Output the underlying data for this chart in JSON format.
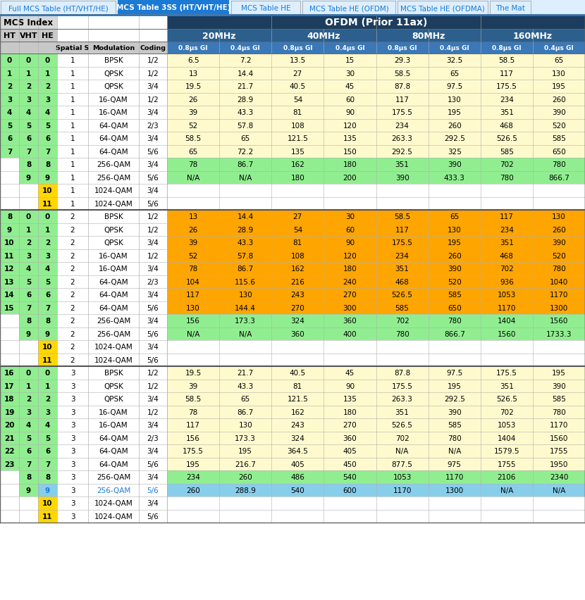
{
  "tab_labels": [
    "Full MCS Table (HT/VHT/HE)",
    "MCS Table 3SS (HT/VHT/HE)",
    "MCS Table HE",
    "MCS Table HE (OFDM)",
    "MCS Table HE (OFDMA)",
    "The Mat"
  ],
  "active_tab": 1,
  "ofdm_header": "OFDM (Prior 11ax)",
  "col_headers_l1": [
    "20MHz",
    "40MHz",
    "80MHz",
    "160MHz"
  ],
  "col_headers_l2": [
    "0.8μs GI",
    "0.4μs GI",
    "0.8μs GI",
    "0.4μs GI",
    "0.8μs GI",
    "0.4μs GI",
    "0.8μs GI",
    "0.4μs GI"
  ],
  "tab_bar_bg": "#ddeeff",
  "tab_active_bg": "#1a7ad4",
  "tab_inactive_text": "#1a7ad4",
  "tab_active_text": "#ffffff",
  "ofdm_header_bg": "#1c3d5e",
  "mcs_index_bg": "#d8d8d8",
  "mhz_header_bg": "#2c5f8c",
  "gi_header_bg": "#3a78b8",
  "col_header_text": "#ffffff",
  "mcs_header_text": "#000000",
  "gi_row_bg": "#c8c8c8",
  "rows": [
    {
      "HT": "0",
      "VHT": "0",
      "HE": "0",
      "Spatial": "1",
      "Modulation": "BPSK",
      "Coding": "1/2",
      "v20_08": "6.5",
      "v20_04": "7.2",
      "v40_08": "13.5",
      "v40_04": "15",
      "v80_08": "29.3",
      "v80_04": "32.5",
      "v160_08": "58.5",
      "v160_04": "65",
      "bg_ht": "#90ee90",
      "bg_vht": "#90ee90",
      "bg_he": "#90ee90",
      "bg_data": "#fffacd",
      "he_text": "#000000",
      "mod_text": "#000000",
      "cod_text": "#000000"
    },
    {
      "HT": "1",
      "VHT": "1",
      "HE": "1",
      "Spatial": "1",
      "Modulation": "QPSK",
      "Coding": "1/2",
      "v20_08": "13",
      "v20_04": "14.4",
      "v40_08": "27",
      "v40_04": "30",
      "v80_08": "58.5",
      "v80_04": "65",
      "v160_08": "117",
      "v160_04": "130",
      "bg_ht": "#90ee90",
      "bg_vht": "#90ee90",
      "bg_he": "#90ee90",
      "bg_data": "#fffacd",
      "he_text": "#000000",
      "mod_text": "#000000",
      "cod_text": "#000000"
    },
    {
      "HT": "2",
      "VHT": "2",
      "HE": "2",
      "Spatial": "1",
      "Modulation": "QPSK",
      "Coding": "3/4",
      "v20_08": "19.5",
      "v20_04": "21.7",
      "v40_08": "40.5",
      "v40_04": "45",
      "v80_08": "87.8",
      "v80_04": "97.5",
      "v160_08": "175.5",
      "v160_04": "195",
      "bg_ht": "#90ee90",
      "bg_vht": "#90ee90",
      "bg_he": "#90ee90",
      "bg_data": "#fffacd",
      "he_text": "#000000",
      "mod_text": "#000000",
      "cod_text": "#000000"
    },
    {
      "HT": "3",
      "VHT": "3",
      "HE": "3",
      "Spatial": "1",
      "Modulation": "16-QAM",
      "Coding": "1/2",
      "v20_08": "26",
      "v20_04": "28.9",
      "v40_08": "54",
      "v40_04": "60",
      "v80_08": "117",
      "v80_04": "130",
      "v160_08": "234",
      "v160_04": "260",
      "bg_ht": "#90ee90",
      "bg_vht": "#90ee90",
      "bg_he": "#90ee90",
      "bg_data": "#fffacd",
      "he_text": "#000000",
      "mod_text": "#000000",
      "cod_text": "#000000"
    },
    {
      "HT": "4",
      "VHT": "4",
      "HE": "4",
      "Spatial": "1",
      "Modulation": "16-QAM",
      "Coding": "3/4",
      "v20_08": "39",
      "v20_04": "43.3",
      "v40_08": "81",
      "v40_04": "90",
      "v80_08": "175.5",
      "v80_04": "195",
      "v160_08": "351",
      "v160_04": "390",
      "bg_ht": "#90ee90",
      "bg_vht": "#90ee90",
      "bg_he": "#90ee90",
      "bg_data": "#fffacd",
      "he_text": "#000000",
      "mod_text": "#000000",
      "cod_text": "#000000"
    },
    {
      "HT": "5",
      "VHT": "5",
      "HE": "5",
      "Spatial": "1",
      "Modulation": "64-QAM",
      "Coding": "2/3",
      "v20_08": "52",
      "v20_04": "57.8",
      "v40_08": "108",
      "v40_04": "120",
      "v80_08": "234",
      "v80_04": "260",
      "v160_08": "468",
      "v160_04": "520",
      "bg_ht": "#90ee90",
      "bg_vht": "#90ee90",
      "bg_he": "#90ee90",
      "bg_data": "#fffacd",
      "he_text": "#000000",
      "mod_text": "#000000",
      "cod_text": "#000000"
    },
    {
      "HT": "6",
      "VHT": "6",
      "HE": "6",
      "Spatial": "1",
      "Modulation": "64-QAM",
      "Coding": "3/4",
      "v20_08": "58.5",
      "v20_04": "65",
      "v40_08": "121.5",
      "v40_04": "135",
      "v80_08": "263.3",
      "v80_04": "292.5",
      "v160_08": "526.5",
      "v160_04": "585",
      "bg_ht": "#90ee90",
      "bg_vht": "#90ee90",
      "bg_he": "#90ee90",
      "bg_data": "#fffacd",
      "he_text": "#000000",
      "mod_text": "#000000",
      "cod_text": "#000000"
    },
    {
      "HT": "7",
      "VHT": "7",
      "HE": "7",
      "Spatial": "1",
      "Modulation": "64-QAM",
      "Coding": "5/6",
      "v20_08": "65",
      "v20_04": "72.2",
      "v40_08": "135",
      "v40_04": "150",
      "v80_08": "292.5",
      "v80_04": "325",
      "v160_08": "585",
      "v160_04": "650",
      "bg_ht": "#90ee90",
      "bg_vht": "#90ee90",
      "bg_he": "#90ee90",
      "bg_data": "#fffacd",
      "he_text": "#000000",
      "mod_text": "#000000",
      "cod_text": "#000000"
    },
    {
      "HT": "",
      "VHT": "8",
      "HE": "8",
      "Spatial": "1",
      "Modulation": "256-QAM",
      "Coding": "3/4",
      "v20_08": "78",
      "v20_04": "86.7",
      "v40_08": "162",
      "v40_04": "180",
      "v80_08": "351",
      "v80_04": "390",
      "v160_08": "702",
      "v160_04": "780",
      "bg_ht": "#ffffff",
      "bg_vht": "#90ee90",
      "bg_he": "#90ee90",
      "bg_data": "#90ee90",
      "he_text": "#000000",
      "mod_text": "#000000",
      "cod_text": "#000000"
    },
    {
      "HT": "",
      "VHT": "9",
      "HE": "9",
      "Spatial": "1",
      "Modulation": "256-QAM",
      "Coding": "5/6",
      "v20_08": "N/A",
      "v20_04": "N/A",
      "v40_08": "180",
      "v40_04": "200",
      "v80_08": "390",
      "v80_04": "433.3",
      "v160_08": "780",
      "v160_04": "866.7",
      "bg_ht": "#ffffff",
      "bg_vht": "#90ee90",
      "bg_he": "#90ee90",
      "bg_data": "#90ee90",
      "he_text": "#000000",
      "mod_text": "#000000",
      "cod_text": "#000000"
    },
    {
      "HT": "",
      "VHT": "",
      "HE": "10",
      "Spatial": "1",
      "Modulation": "1024-QAM",
      "Coding": "3/4",
      "v20_08": "",
      "v20_04": "",
      "v40_08": "",
      "v40_04": "",
      "v80_08": "",
      "v80_04": "",
      "v160_08": "",
      "v160_04": "",
      "bg_ht": "#ffffff",
      "bg_vht": "#ffffff",
      "bg_he": "#ffd700",
      "bg_data": "#ffffff",
      "he_text": "#000000",
      "mod_text": "#000000",
      "cod_text": "#000000"
    },
    {
      "HT": "",
      "VHT": "",
      "HE": "11",
      "Spatial": "1",
      "Modulation": "1024-QAM",
      "Coding": "5/6",
      "v20_08": "",
      "v20_04": "",
      "v40_08": "",
      "v40_04": "",
      "v80_08": "",
      "v80_04": "",
      "v160_08": "",
      "v160_04": "",
      "bg_ht": "#ffffff",
      "bg_vht": "#ffffff",
      "bg_he": "#ffd700",
      "bg_data": "#ffffff",
      "he_text": "#000000",
      "mod_text": "#000000",
      "cod_text": "#000000"
    },
    {
      "HT": "8",
      "VHT": "0",
      "HE": "0",
      "Spatial": "2",
      "Modulation": "BPSK",
      "Coding": "1/2",
      "v20_08": "13",
      "v20_04": "14.4",
      "v40_08": "27",
      "v40_04": "30",
      "v80_08": "58.5",
      "v80_04": "65",
      "v160_08": "117",
      "v160_04": "130",
      "bg_ht": "#90ee90",
      "bg_vht": "#90ee90",
      "bg_he": "#90ee90",
      "bg_data": "#ffa500",
      "he_text": "#000000",
      "mod_text": "#000000",
      "cod_text": "#000000"
    },
    {
      "HT": "9",
      "VHT": "1",
      "HE": "1",
      "Spatial": "2",
      "Modulation": "QPSK",
      "Coding": "1/2",
      "v20_08": "26",
      "v20_04": "28.9",
      "v40_08": "54",
      "v40_04": "60",
      "v80_08": "117",
      "v80_04": "130",
      "v160_08": "234",
      "v160_04": "260",
      "bg_ht": "#90ee90",
      "bg_vht": "#90ee90",
      "bg_he": "#90ee90",
      "bg_data": "#ffa500",
      "he_text": "#000000",
      "mod_text": "#000000",
      "cod_text": "#000000"
    },
    {
      "HT": "10",
      "VHT": "2",
      "HE": "2",
      "Spatial": "2",
      "Modulation": "QPSK",
      "Coding": "3/4",
      "v20_08": "39",
      "v20_04": "43.3",
      "v40_08": "81",
      "v40_04": "90",
      "v80_08": "175.5",
      "v80_04": "195",
      "v160_08": "351",
      "v160_04": "390",
      "bg_ht": "#90ee90",
      "bg_vht": "#90ee90",
      "bg_he": "#90ee90",
      "bg_data": "#ffa500",
      "he_text": "#000000",
      "mod_text": "#000000",
      "cod_text": "#000000"
    },
    {
      "HT": "11",
      "VHT": "3",
      "HE": "3",
      "Spatial": "2",
      "Modulation": "16-QAM",
      "Coding": "1/2",
      "v20_08": "52",
      "v20_04": "57.8",
      "v40_08": "108",
      "v40_04": "120",
      "v80_08": "234",
      "v80_04": "260",
      "v160_08": "468",
      "v160_04": "520",
      "bg_ht": "#90ee90",
      "bg_vht": "#90ee90",
      "bg_he": "#90ee90",
      "bg_data": "#ffa500",
      "he_text": "#000000",
      "mod_text": "#000000",
      "cod_text": "#000000"
    },
    {
      "HT": "12",
      "VHT": "4",
      "HE": "4",
      "Spatial": "2",
      "Modulation": "16-QAM",
      "Coding": "3/4",
      "v20_08": "78",
      "v20_04": "86.7",
      "v40_08": "162",
      "v40_04": "180",
      "v80_08": "351",
      "v80_04": "390",
      "v160_08": "702",
      "v160_04": "780",
      "bg_ht": "#90ee90",
      "bg_vht": "#90ee90",
      "bg_he": "#90ee90",
      "bg_data": "#ffa500",
      "he_text": "#000000",
      "mod_text": "#000000",
      "cod_text": "#000000"
    },
    {
      "HT": "13",
      "VHT": "5",
      "HE": "5",
      "Spatial": "2",
      "Modulation": "64-QAM",
      "Coding": "2/3",
      "v20_08": "104",
      "v20_04": "115.6",
      "v40_08": "216",
      "v40_04": "240",
      "v80_08": "468",
      "v80_04": "520",
      "v160_08": "936",
      "v160_04": "1040",
      "bg_ht": "#90ee90",
      "bg_vht": "#90ee90",
      "bg_he": "#90ee90",
      "bg_data": "#ffa500",
      "he_text": "#000000",
      "mod_text": "#000000",
      "cod_text": "#000000"
    },
    {
      "HT": "14",
      "VHT": "6",
      "HE": "6",
      "Spatial": "2",
      "Modulation": "64-QAM",
      "Coding": "3/4",
      "v20_08": "117",
      "v20_04": "130",
      "v40_08": "243",
      "v40_04": "270",
      "v80_08": "526.5",
      "v80_04": "585",
      "v160_08": "1053",
      "v160_04": "1170",
      "bg_ht": "#90ee90",
      "bg_vht": "#90ee90",
      "bg_he": "#90ee90",
      "bg_data": "#ffa500",
      "he_text": "#000000",
      "mod_text": "#000000",
      "cod_text": "#000000"
    },
    {
      "HT": "15",
      "VHT": "7",
      "HE": "7",
      "Spatial": "2",
      "Modulation": "64-QAM",
      "Coding": "5/6",
      "v20_08": "130",
      "v20_04": "144.4",
      "v40_08": "270",
      "v40_04": "300",
      "v80_08": "585",
      "v80_04": "650",
      "v160_08": "1170",
      "v160_04": "1300",
      "bg_ht": "#90ee90",
      "bg_vht": "#90ee90",
      "bg_he": "#90ee90",
      "bg_data": "#ffa500",
      "he_text": "#000000",
      "mod_text": "#000000",
      "cod_text": "#000000"
    },
    {
      "HT": "",
      "VHT": "8",
      "HE": "8",
      "Spatial": "2",
      "Modulation": "256-QAM",
      "Coding": "3/4",
      "v20_08": "156",
      "v20_04": "173.3",
      "v40_08": "324",
      "v40_04": "360",
      "v80_08": "702",
      "v80_04": "780",
      "v160_08": "1404",
      "v160_04": "1560",
      "bg_ht": "#ffffff",
      "bg_vht": "#90ee90",
      "bg_he": "#90ee90",
      "bg_data": "#90ee90",
      "he_text": "#000000",
      "mod_text": "#000000",
      "cod_text": "#000000"
    },
    {
      "HT": "",
      "VHT": "9",
      "HE": "9",
      "Spatial": "2",
      "Modulation": "256-QAM",
      "Coding": "5/6",
      "v20_08": "N/A",
      "v20_04": "N/A",
      "v40_08": "360",
      "v40_04": "400",
      "v80_08": "780",
      "v80_04": "866.7",
      "v160_08": "1560",
      "v160_04": "1733.3",
      "bg_ht": "#ffffff",
      "bg_vht": "#90ee90",
      "bg_he": "#90ee90",
      "bg_data": "#90ee90",
      "he_text": "#000000",
      "mod_text": "#000000",
      "cod_text": "#000000"
    },
    {
      "HT": "",
      "VHT": "",
      "HE": "10",
      "Spatial": "2",
      "Modulation": "1024-QAM",
      "Coding": "3/4",
      "v20_08": "",
      "v20_04": "",
      "v40_08": "",
      "v40_04": "",
      "v80_08": "",
      "v80_04": "",
      "v160_08": "",
      "v160_04": "",
      "bg_ht": "#ffffff",
      "bg_vht": "#ffffff",
      "bg_he": "#ffd700",
      "bg_data": "#ffffff",
      "he_text": "#000000",
      "mod_text": "#000000",
      "cod_text": "#000000"
    },
    {
      "HT": "",
      "VHT": "",
      "HE": "11",
      "Spatial": "2",
      "Modulation": "1024-QAM",
      "Coding": "5/6",
      "v20_08": "",
      "v20_04": "",
      "v40_08": "",
      "v40_04": "",
      "v80_08": "",
      "v80_04": "",
      "v160_08": "",
      "v160_04": "",
      "bg_ht": "#ffffff",
      "bg_vht": "#ffffff",
      "bg_he": "#ffd700",
      "bg_data": "#ffffff",
      "he_text": "#000000",
      "mod_text": "#000000",
      "cod_text": "#000000"
    },
    {
      "HT": "16",
      "VHT": "0",
      "HE": "0",
      "Spatial": "3",
      "Modulation": "BPSK",
      "Coding": "1/2",
      "v20_08": "19.5",
      "v20_04": "21.7",
      "v40_08": "40.5",
      "v40_04": "45",
      "v80_08": "87.8",
      "v80_04": "97.5",
      "v160_08": "175.5",
      "v160_04": "195",
      "bg_ht": "#90ee90",
      "bg_vht": "#90ee90",
      "bg_he": "#90ee90",
      "bg_data": "#fffacd",
      "he_text": "#000000",
      "mod_text": "#000000",
      "cod_text": "#000000"
    },
    {
      "HT": "17",
      "VHT": "1",
      "HE": "1",
      "Spatial": "3",
      "Modulation": "QPSK",
      "Coding": "1/2",
      "v20_08": "39",
      "v20_04": "43.3",
      "v40_08": "81",
      "v40_04": "90",
      "v80_08": "175.5",
      "v80_04": "195",
      "v160_08": "351",
      "v160_04": "390",
      "bg_ht": "#90ee90",
      "bg_vht": "#90ee90",
      "bg_he": "#90ee90",
      "bg_data": "#fffacd",
      "he_text": "#000000",
      "mod_text": "#000000",
      "cod_text": "#000000"
    },
    {
      "HT": "18",
      "VHT": "2",
      "HE": "2",
      "Spatial": "3",
      "Modulation": "QPSK",
      "Coding": "3/4",
      "v20_08": "58.5",
      "v20_04": "65",
      "v40_08": "121.5",
      "v40_04": "135",
      "v80_08": "263.3",
      "v80_04": "292.5",
      "v160_08": "526.5",
      "v160_04": "585",
      "bg_ht": "#90ee90",
      "bg_vht": "#90ee90",
      "bg_he": "#90ee90",
      "bg_data": "#fffacd",
      "he_text": "#000000",
      "mod_text": "#000000",
      "cod_text": "#000000"
    },
    {
      "HT": "19",
      "VHT": "3",
      "HE": "3",
      "Spatial": "3",
      "Modulation": "16-QAM",
      "Coding": "1/2",
      "v20_08": "78",
      "v20_04": "86.7",
      "v40_08": "162",
      "v40_04": "180",
      "v80_08": "351",
      "v80_04": "390",
      "v160_08": "702",
      "v160_04": "780",
      "bg_ht": "#90ee90",
      "bg_vht": "#90ee90",
      "bg_he": "#90ee90",
      "bg_data": "#fffacd",
      "he_text": "#000000",
      "mod_text": "#000000",
      "cod_text": "#000000"
    },
    {
      "HT": "20",
      "VHT": "4",
      "HE": "4",
      "Spatial": "3",
      "Modulation": "16-QAM",
      "Coding": "3/4",
      "v20_08": "117",
      "v20_04": "130",
      "v40_08": "243",
      "v40_04": "270",
      "v80_08": "526.5",
      "v80_04": "585",
      "v160_08": "1053",
      "v160_04": "1170",
      "bg_ht": "#90ee90",
      "bg_vht": "#90ee90",
      "bg_he": "#90ee90",
      "bg_data": "#fffacd",
      "he_text": "#000000",
      "mod_text": "#000000",
      "cod_text": "#000000"
    },
    {
      "HT": "21",
      "VHT": "5",
      "HE": "5",
      "Spatial": "3",
      "Modulation": "64-QAM",
      "Coding": "2/3",
      "v20_08": "156",
      "v20_04": "173.3",
      "v40_08": "324",
      "v40_04": "360",
      "v80_08": "702",
      "v80_04": "780",
      "v160_08": "1404",
      "v160_04": "1560",
      "bg_ht": "#90ee90",
      "bg_vht": "#90ee90",
      "bg_he": "#90ee90",
      "bg_data": "#fffacd",
      "he_text": "#000000",
      "mod_text": "#000000",
      "cod_text": "#000000"
    },
    {
      "HT": "22",
      "VHT": "6",
      "HE": "6",
      "Spatial": "3",
      "Modulation": "64-QAM",
      "Coding": "3/4",
      "v20_08": "175.5",
      "v20_04": "195",
      "v40_08": "364.5",
      "v40_04": "405",
      "v80_08": "N/A",
      "v80_04": "N/A",
      "v160_08": "1579.5",
      "v160_04": "1755",
      "bg_ht": "#90ee90",
      "bg_vht": "#90ee90",
      "bg_he": "#90ee90",
      "bg_data": "#fffacd",
      "he_text": "#000000",
      "mod_text": "#000000",
      "cod_text": "#000000"
    },
    {
      "HT": "23",
      "VHT": "7",
      "HE": "7",
      "Spatial": "3",
      "Modulation": "64-QAM",
      "Coding": "5/6",
      "v20_08": "195",
      "v20_04": "216.7",
      "v40_08": "405",
      "v40_04": "450",
      "v80_08": "877.5",
      "v80_04": "975",
      "v160_08": "1755",
      "v160_04": "1950",
      "bg_ht": "#90ee90",
      "bg_vht": "#90ee90",
      "bg_he": "#90ee90",
      "bg_data": "#fffacd",
      "he_text": "#000000",
      "mod_text": "#000000",
      "cod_text": "#000000"
    },
    {
      "HT": "",
      "VHT": "8",
      "HE": "8",
      "Spatial": "3",
      "Modulation": "256-QAM",
      "Coding": "3/4",
      "v20_08": "234",
      "v20_04": "260",
      "v40_08": "486",
      "v40_04": "540",
      "v80_08": "1053",
      "v80_04": "1170",
      "v160_08": "2106",
      "v160_04": "2340",
      "bg_ht": "#ffffff",
      "bg_vht": "#90ee90",
      "bg_he": "#90ee90",
      "bg_data": "#90ee90",
      "he_text": "#000000",
      "mod_text": "#000000",
      "cod_text": "#000000"
    },
    {
      "HT": "",
      "VHT": "9",
      "HE": "9",
      "Spatial": "3",
      "Modulation": "256-QAM",
      "Coding": "5/6",
      "v20_08": "260",
      "v20_04": "288.9",
      "v40_08": "540",
      "v40_04": "600",
      "v80_08": "1170",
      "v80_04": "1300",
      "v160_08": "N/A",
      "v160_04": "N/A",
      "bg_ht": "#ffffff",
      "bg_vht": "#90ee90",
      "bg_he": "#87ceeb",
      "bg_data": "#87ceeb",
      "he_text": "#1a7ad4",
      "mod_text": "#1a7ad4",
      "cod_text": "#1a7ad4"
    },
    {
      "HT": "",
      "VHT": "",
      "HE": "10",
      "Spatial": "3",
      "Modulation": "1024-QAM",
      "Coding": "3/4",
      "v20_08": "",
      "v20_04": "",
      "v40_08": "",
      "v40_04": "",
      "v80_08": "",
      "v80_04": "",
      "v160_08": "",
      "v160_04": "",
      "bg_ht": "#ffffff",
      "bg_vht": "#ffffff",
      "bg_he": "#ffd700",
      "bg_data": "#ffffff",
      "he_text": "#000000",
      "mod_text": "#000000",
      "cod_text": "#000000"
    },
    {
      "HT": "",
      "VHT": "",
      "HE": "11",
      "Spatial": "3",
      "Modulation": "1024-QAM",
      "Coding": "5/6",
      "v20_08": "",
      "v20_04": "",
      "v40_08": "",
      "v40_04": "",
      "v80_08": "",
      "v80_04": "",
      "v160_08": "",
      "v160_04": "",
      "bg_ht": "#ffffff",
      "bg_vht": "#ffffff",
      "bg_he": "#ffd700",
      "bg_data": "#ffffff",
      "he_text": "#000000",
      "mod_text": "#000000",
      "cod_text": "#000000"
    }
  ],
  "group_separators": [
    12,
    24
  ],
  "fig_width": 8.3,
  "fig_height": 8.53,
  "dpi": 100
}
